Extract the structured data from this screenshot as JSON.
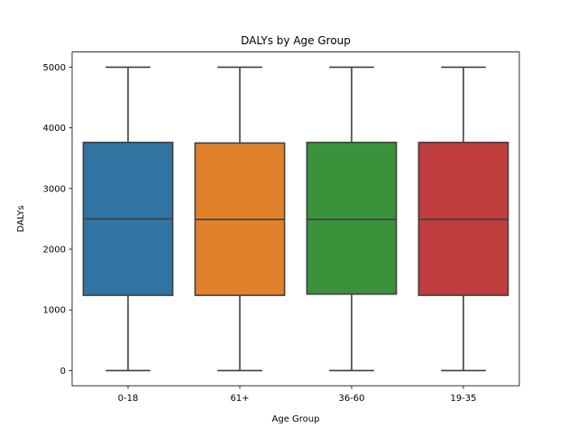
{
  "chart_data": {
    "type": "box",
    "title": "DALYs by Age Group",
    "xlabel": "Age Group",
    "ylabel": "DALYs",
    "categories": [
      "0-18",
      "61+",
      "36-60",
      "19-35"
    ],
    "ylim": [
      -250,
      5250
    ],
    "yticks": [
      0,
      1000,
      2000,
      3000,
      4000,
      5000
    ],
    "grid": false,
    "boxes": [
      {
        "name": "0-18",
        "whisker_low": 0,
        "q1": 1240,
        "median": 2500,
        "q3": 3760,
        "whisker_high": 5000,
        "color": "#3274a1"
      },
      {
        "name": "61+",
        "whisker_low": 0,
        "q1": 1240,
        "median": 2490,
        "q3": 3750,
        "whisker_high": 5000,
        "color": "#e1812c"
      },
      {
        "name": "36-60",
        "whisker_low": 0,
        "q1": 1260,
        "median": 2490,
        "q3": 3760,
        "whisker_high": 5000,
        "color": "#3a923a"
      },
      {
        "name": "19-35",
        "whisker_low": 0,
        "q1": 1240,
        "median": 2490,
        "q3": 3760,
        "whisker_high": 5000,
        "color": "#c03d3e"
      }
    ]
  }
}
